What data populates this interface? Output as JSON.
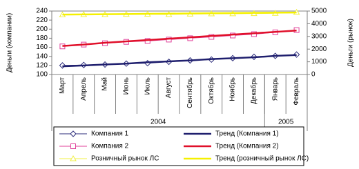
{
  "chart_data": {
    "type": "line",
    "y_label": "Деньги (компании)",
    "y2_label": "Деньги (рынок)",
    "categories": [
      "Март",
      "Апрель",
      "Май",
      "Июнь",
      "Июль",
      "Август",
      "Сентябрь",
      "Октябрь",
      "Ноябрь",
      "Декабрь",
      "Январь",
      "Февраль"
    ],
    "groups": [
      {
        "label": "2004",
        "span": 10
      },
      {
        "label": "2005",
        "span": 2
      }
    ],
    "ylim": [
      100,
      240
    ],
    "yticks": [
      100,
      120,
      140,
      160,
      180,
      200,
      220,
      240
    ],
    "y2lim": [
      0,
      5000
    ],
    "y2ticks": [
      0,
      1000,
      2000,
      3000,
      4000,
      5000
    ],
    "series": [
      {
        "name": "Компания 1",
        "color": "#2b2b7a",
        "marker": "diamond",
        "line_width": 1,
        "values": [
          120,
          121,
          122,
          124,
          125,
          128,
          131,
          133,
          136,
          139,
          141,
          144
        ]
      },
      {
        "name": "Тренд (Компания 1)",
        "color": "#1f1f6e",
        "line_width": 2.5,
        "values": [
          118,
          120,
          122,
          124,
          127,
          129,
          131,
          134,
          136,
          138,
          141,
          143
        ]
      },
      {
        "name": "Компания 2",
        "color": "#e0409a",
        "marker": "square",
        "line_width": 1,
        "values": [
          162,
          166,
          169,
          172,
          174,
          177,
          180,
          183,
          186,
          189,
          193,
          198
        ]
      },
      {
        "name": "Тренд (Компания 2)",
        "color": "#e0102a",
        "line_width": 2.5,
        "values": [
          163,
          166,
          170,
          173,
          176,
          179,
          182,
          185,
          188,
          191,
          194,
          197
        ]
      },
      {
        "name": "Розничный рынок ЛС",
        "color": "#f0f040",
        "marker": "triangle",
        "line_width": 1,
        "axis": "y2",
        "values": [
          4700,
          4720,
          4730,
          4740,
          4750,
          4730,
          4760,
          4780,
          4790,
          4800,
          4820,
          4900
        ]
      },
      {
        "name": "Тренд (розничный рынок ЛС)",
        "color": "#f5f000",
        "line_width": 2.5,
        "axis": "y2",
        "values": [
          4720,
          4735,
          4750,
          4765,
          4780,
          4795,
          4810,
          4825,
          4840,
          4855,
          4870,
          4885
        ]
      }
    ]
  }
}
